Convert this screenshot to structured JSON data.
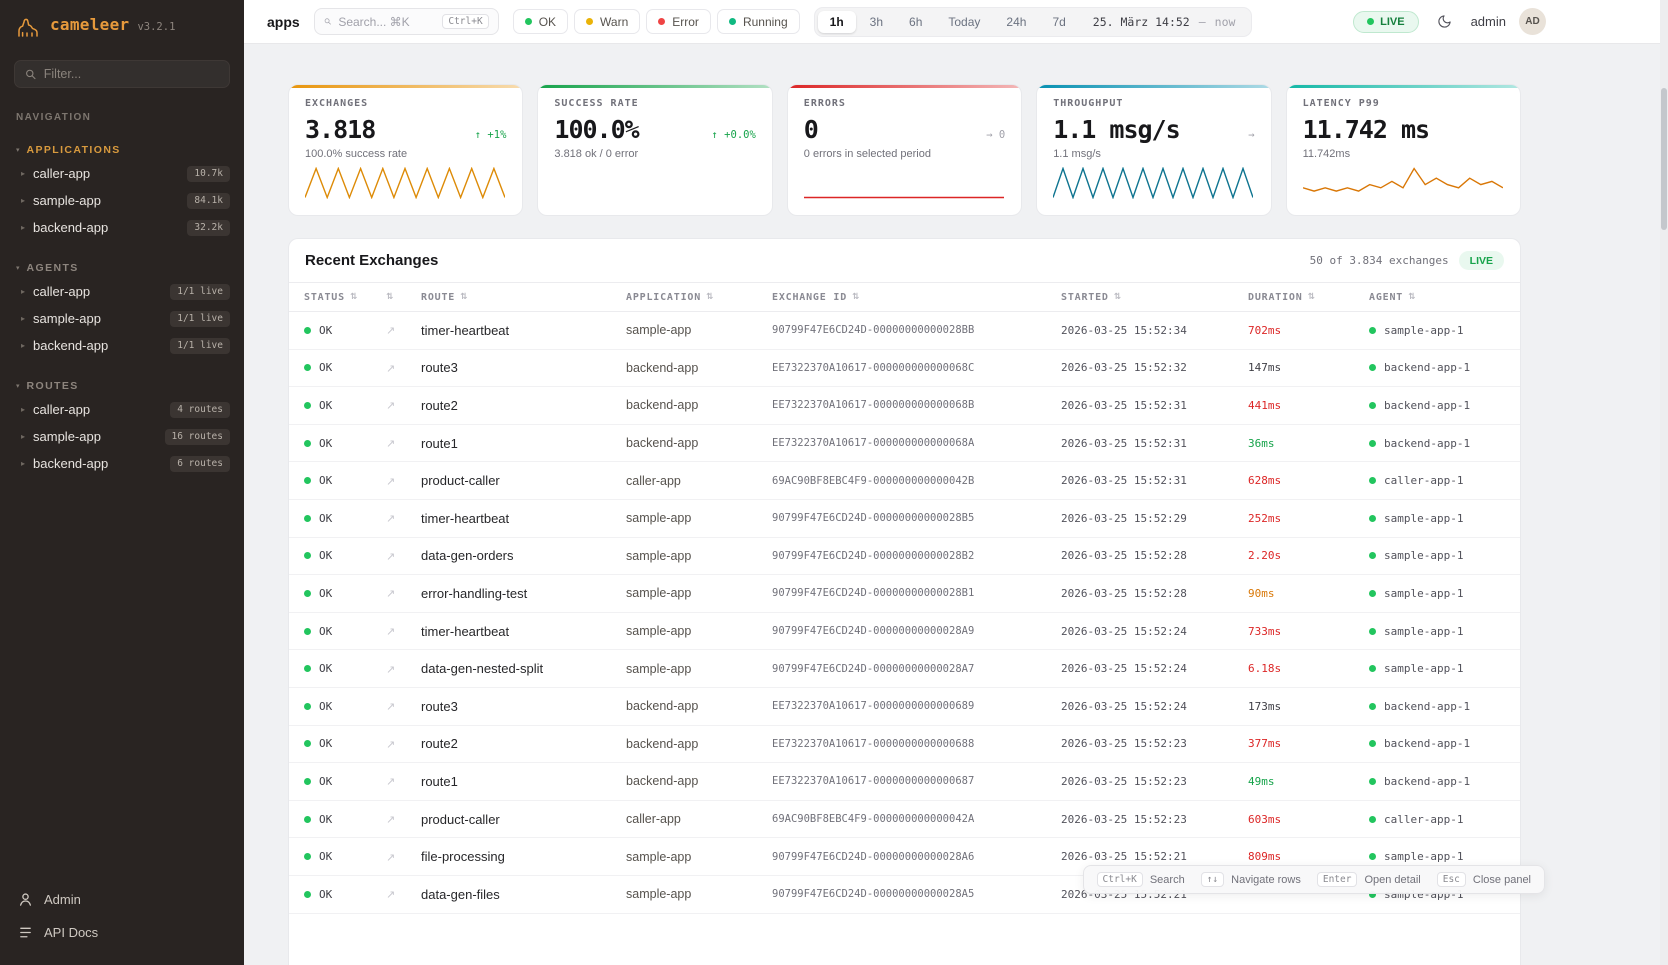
{
  "app": {
    "name": "cameleer",
    "version": "v3.2.1"
  },
  "sidebar": {
    "filter_placeholder": "Filter...",
    "nav_label": "NAVIGATION",
    "sections": [
      {
        "title": "APPLICATIONS",
        "active": true,
        "items": [
          {
            "label": "caller-app",
            "badge": "10.7k"
          },
          {
            "label": "sample-app",
            "badge": "84.1k"
          },
          {
            "label": "backend-app",
            "badge": "32.2k"
          }
        ]
      },
      {
        "title": "AGENTS",
        "active": false,
        "items": [
          {
            "label": "caller-app",
            "badge": "1/1 live"
          },
          {
            "label": "sample-app",
            "badge": "1/1 live"
          },
          {
            "label": "backend-app",
            "badge": "1/1 live"
          }
        ]
      },
      {
        "title": "ROUTES",
        "active": false,
        "items": [
          {
            "label": "caller-app",
            "badge": "4 routes"
          },
          {
            "label": "sample-app",
            "badge": "16 routes"
          },
          {
            "label": "backend-app",
            "badge": "6 routes"
          }
        ]
      }
    ],
    "footer": [
      {
        "label": "Admin"
      },
      {
        "label": "API Docs"
      }
    ]
  },
  "topbar": {
    "page_label": "apps",
    "search_placeholder": "Search... ⌘K",
    "search_shortcut": "Ctrl+K",
    "status_filters": [
      {
        "label": "OK",
        "color": "#22c55e"
      },
      {
        "label": "Warn",
        "color": "#eab308"
      },
      {
        "label": "Error",
        "color": "#ef4444"
      },
      {
        "label": "Running",
        "color": "#10b981"
      }
    ],
    "ranges": [
      "1h",
      "3h",
      "6h",
      "Today",
      "24h",
      "7d"
    ],
    "active_range": "1h",
    "datetime": "25. März 14:52",
    "datetime_separator": "—",
    "datetime_now": "now",
    "live_label": "LIVE",
    "user_label": "admin",
    "avatar_initials": "AD"
  },
  "stats": [
    {
      "title": "EXCHANGES",
      "value": "3.818",
      "delta": "↑ +1%",
      "delta_class": "green",
      "sub": "100.0% success rate",
      "accent": "#e8950c",
      "spark_color": "#dd8b07",
      "spark": [
        0,
        1,
        0,
        1,
        0,
        1,
        0,
        1,
        0,
        1,
        0,
        1,
        0,
        1,
        0,
        1,
        0,
        1,
        0
      ]
    },
    {
      "title": "SUCCESS RATE",
      "value": "100.0%",
      "delta": "↑ +0.0%",
      "delta_class": "green",
      "sub": "3.818 ok / 0 error",
      "accent": "#16a34a",
      "spark_color": "#16a34a",
      "spark": []
    },
    {
      "title": "ERRORS",
      "value": "0",
      "delta": "→ 0",
      "delta_class": "gray",
      "sub": "0 errors in selected period",
      "accent": "#dc2626",
      "spark_color": "#dc2626",
      "spark": [
        0,
        0,
        0,
        0,
        0,
        0,
        0,
        0
      ]
    },
    {
      "title": "THROUGHPUT",
      "value": "1.1 msg/s",
      "delta": "→",
      "delta_class": "gray",
      "sub": "1.1 msg/s",
      "accent": "#0891b2",
      "spark_color": "#0e7490",
      "spark": [
        0,
        1,
        0,
        1,
        0,
        1,
        0,
        1,
        0,
        1,
        0,
        1,
        0,
        1,
        0,
        1,
        0,
        1,
        0,
        1,
        0
      ]
    },
    {
      "title": "LATENCY P99",
      "value": "11.742 ms",
      "delta": "",
      "delta_class": "gray",
      "sub": "11.742ms",
      "accent": "#14b8a6",
      "spark_color": "#d97706",
      "spark": [
        3,
        2,
        3,
        2,
        3,
        2,
        4,
        3,
        5,
        3,
        9,
        4,
        6,
        4,
        3,
        6,
        4,
        5,
        3
      ]
    }
  ],
  "table": {
    "title": "Recent Exchanges",
    "summary": "50 of 3.834 exchanges",
    "live_label": "LIVE",
    "columns": [
      "STATUS",
      "",
      "ROUTE",
      "APPLICATION",
      "EXCHANGE ID",
      "STARTED",
      "DURATION",
      "AGENT"
    ],
    "rows": [
      {
        "status": "OK",
        "route": "timer-heartbeat",
        "application": "sample-app",
        "exchange_id": "90799F47E6CD24D-00000000000028BB",
        "started": "2026-03-25 15:52:34",
        "duration": "702ms",
        "duration_class": "red",
        "agent": "sample-app-1"
      },
      {
        "status": "OK",
        "route": "route3",
        "application": "backend-app",
        "exchange_id": "EE7322370A10617-000000000000068C",
        "started": "2026-03-25 15:52:32",
        "duration": "147ms",
        "duration_class": "default",
        "agent": "backend-app-1"
      },
      {
        "status": "OK",
        "route": "route2",
        "application": "backend-app",
        "exchange_id": "EE7322370A10617-000000000000068B",
        "started": "2026-03-25 15:52:31",
        "duration": "441ms",
        "duration_class": "red",
        "agent": "backend-app-1"
      },
      {
        "status": "OK",
        "route": "route1",
        "application": "backend-app",
        "exchange_id": "EE7322370A10617-000000000000068A",
        "started": "2026-03-25 15:52:31",
        "duration": "36ms",
        "duration_class": "green",
        "agent": "backend-app-1"
      },
      {
        "status": "OK",
        "route": "product-caller",
        "application": "caller-app",
        "exchange_id": "69AC90BF8EBC4F9-000000000000042B",
        "started": "2026-03-25 15:52:31",
        "duration": "628ms",
        "duration_class": "red",
        "agent": "caller-app-1"
      },
      {
        "status": "OK",
        "route": "timer-heartbeat",
        "application": "sample-app",
        "exchange_id": "90799F47E6CD24D-00000000000028B5",
        "started": "2026-03-25 15:52:29",
        "duration": "252ms",
        "duration_class": "red",
        "agent": "sample-app-1"
      },
      {
        "status": "OK",
        "route": "data-gen-orders",
        "application": "sample-app",
        "exchange_id": "90799F47E6CD24D-00000000000028B2",
        "started": "2026-03-25 15:52:28",
        "duration": "2.20s",
        "duration_class": "red",
        "agent": "sample-app-1"
      },
      {
        "status": "OK",
        "route": "error-handling-test",
        "application": "sample-app",
        "exchange_id": "90799F47E6CD24D-00000000000028B1",
        "started": "2026-03-25 15:52:28",
        "duration": "90ms",
        "duration_class": "amber",
        "agent": "sample-app-1"
      },
      {
        "status": "OK",
        "route": "timer-heartbeat",
        "application": "sample-app",
        "exchange_id": "90799F47E6CD24D-00000000000028A9",
        "started": "2026-03-25 15:52:24",
        "duration": "733ms",
        "duration_class": "red",
        "agent": "sample-app-1"
      },
      {
        "status": "OK",
        "route": "data-gen-nested-split",
        "application": "sample-app",
        "exchange_id": "90799F47E6CD24D-00000000000028A7",
        "started": "2026-03-25 15:52:24",
        "duration": "6.18s",
        "duration_class": "red",
        "agent": "sample-app-1"
      },
      {
        "status": "OK",
        "route": "route3",
        "application": "backend-app",
        "exchange_id": "EE7322370A10617-0000000000000689",
        "started": "2026-03-25 15:52:24",
        "duration": "173ms",
        "duration_class": "default",
        "agent": "backend-app-1"
      },
      {
        "status": "OK",
        "route": "route2",
        "application": "backend-app",
        "exchange_id": "EE7322370A10617-0000000000000688",
        "started": "2026-03-25 15:52:23",
        "duration": "377ms",
        "duration_class": "red",
        "agent": "backend-app-1"
      },
      {
        "status": "OK",
        "route": "route1",
        "application": "backend-app",
        "exchange_id": "EE7322370A10617-0000000000000687",
        "started": "2026-03-25 15:52:23",
        "duration": "49ms",
        "duration_class": "green",
        "agent": "backend-app-1"
      },
      {
        "status": "OK",
        "route": "product-caller",
        "application": "caller-app",
        "exchange_id": "69AC90BF8EBC4F9-000000000000042A",
        "started": "2026-03-25 15:52:23",
        "duration": "603ms",
        "duration_class": "red",
        "agent": "caller-app-1"
      },
      {
        "status": "OK",
        "route": "file-processing",
        "application": "sample-app",
        "exchange_id": "90799F47E6CD24D-00000000000028A6",
        "started": "2026-03-25 15:52:21",
        "duration": "809ms",
        "duration_class": "red",
        "agent": "sample-app-1"
      },
      {
        "status": "OK",
        "route": "data-gen-files",
        "application": "sample-app",
        "exchange_id": "90799F47E6CD24D-00000000000028A5",
        "started": "2026-03-25 15:52:21",
        "duration": "",
        "duration_class": "default",
        "agent": "sample-app-1"
      }
    ]
  },
  "shortcuts": [
    {
      "key": "Ctrl+K",
      "label": "Search"
    },
    {
      "key": "↑↓",
      "label": "Navigate rows"
    },
    {
      "key": "Enter",
      "label": "Open detail"
    },
    {
      "key": "Esc",
      "label": "Close panel"
    }
  ]
}
